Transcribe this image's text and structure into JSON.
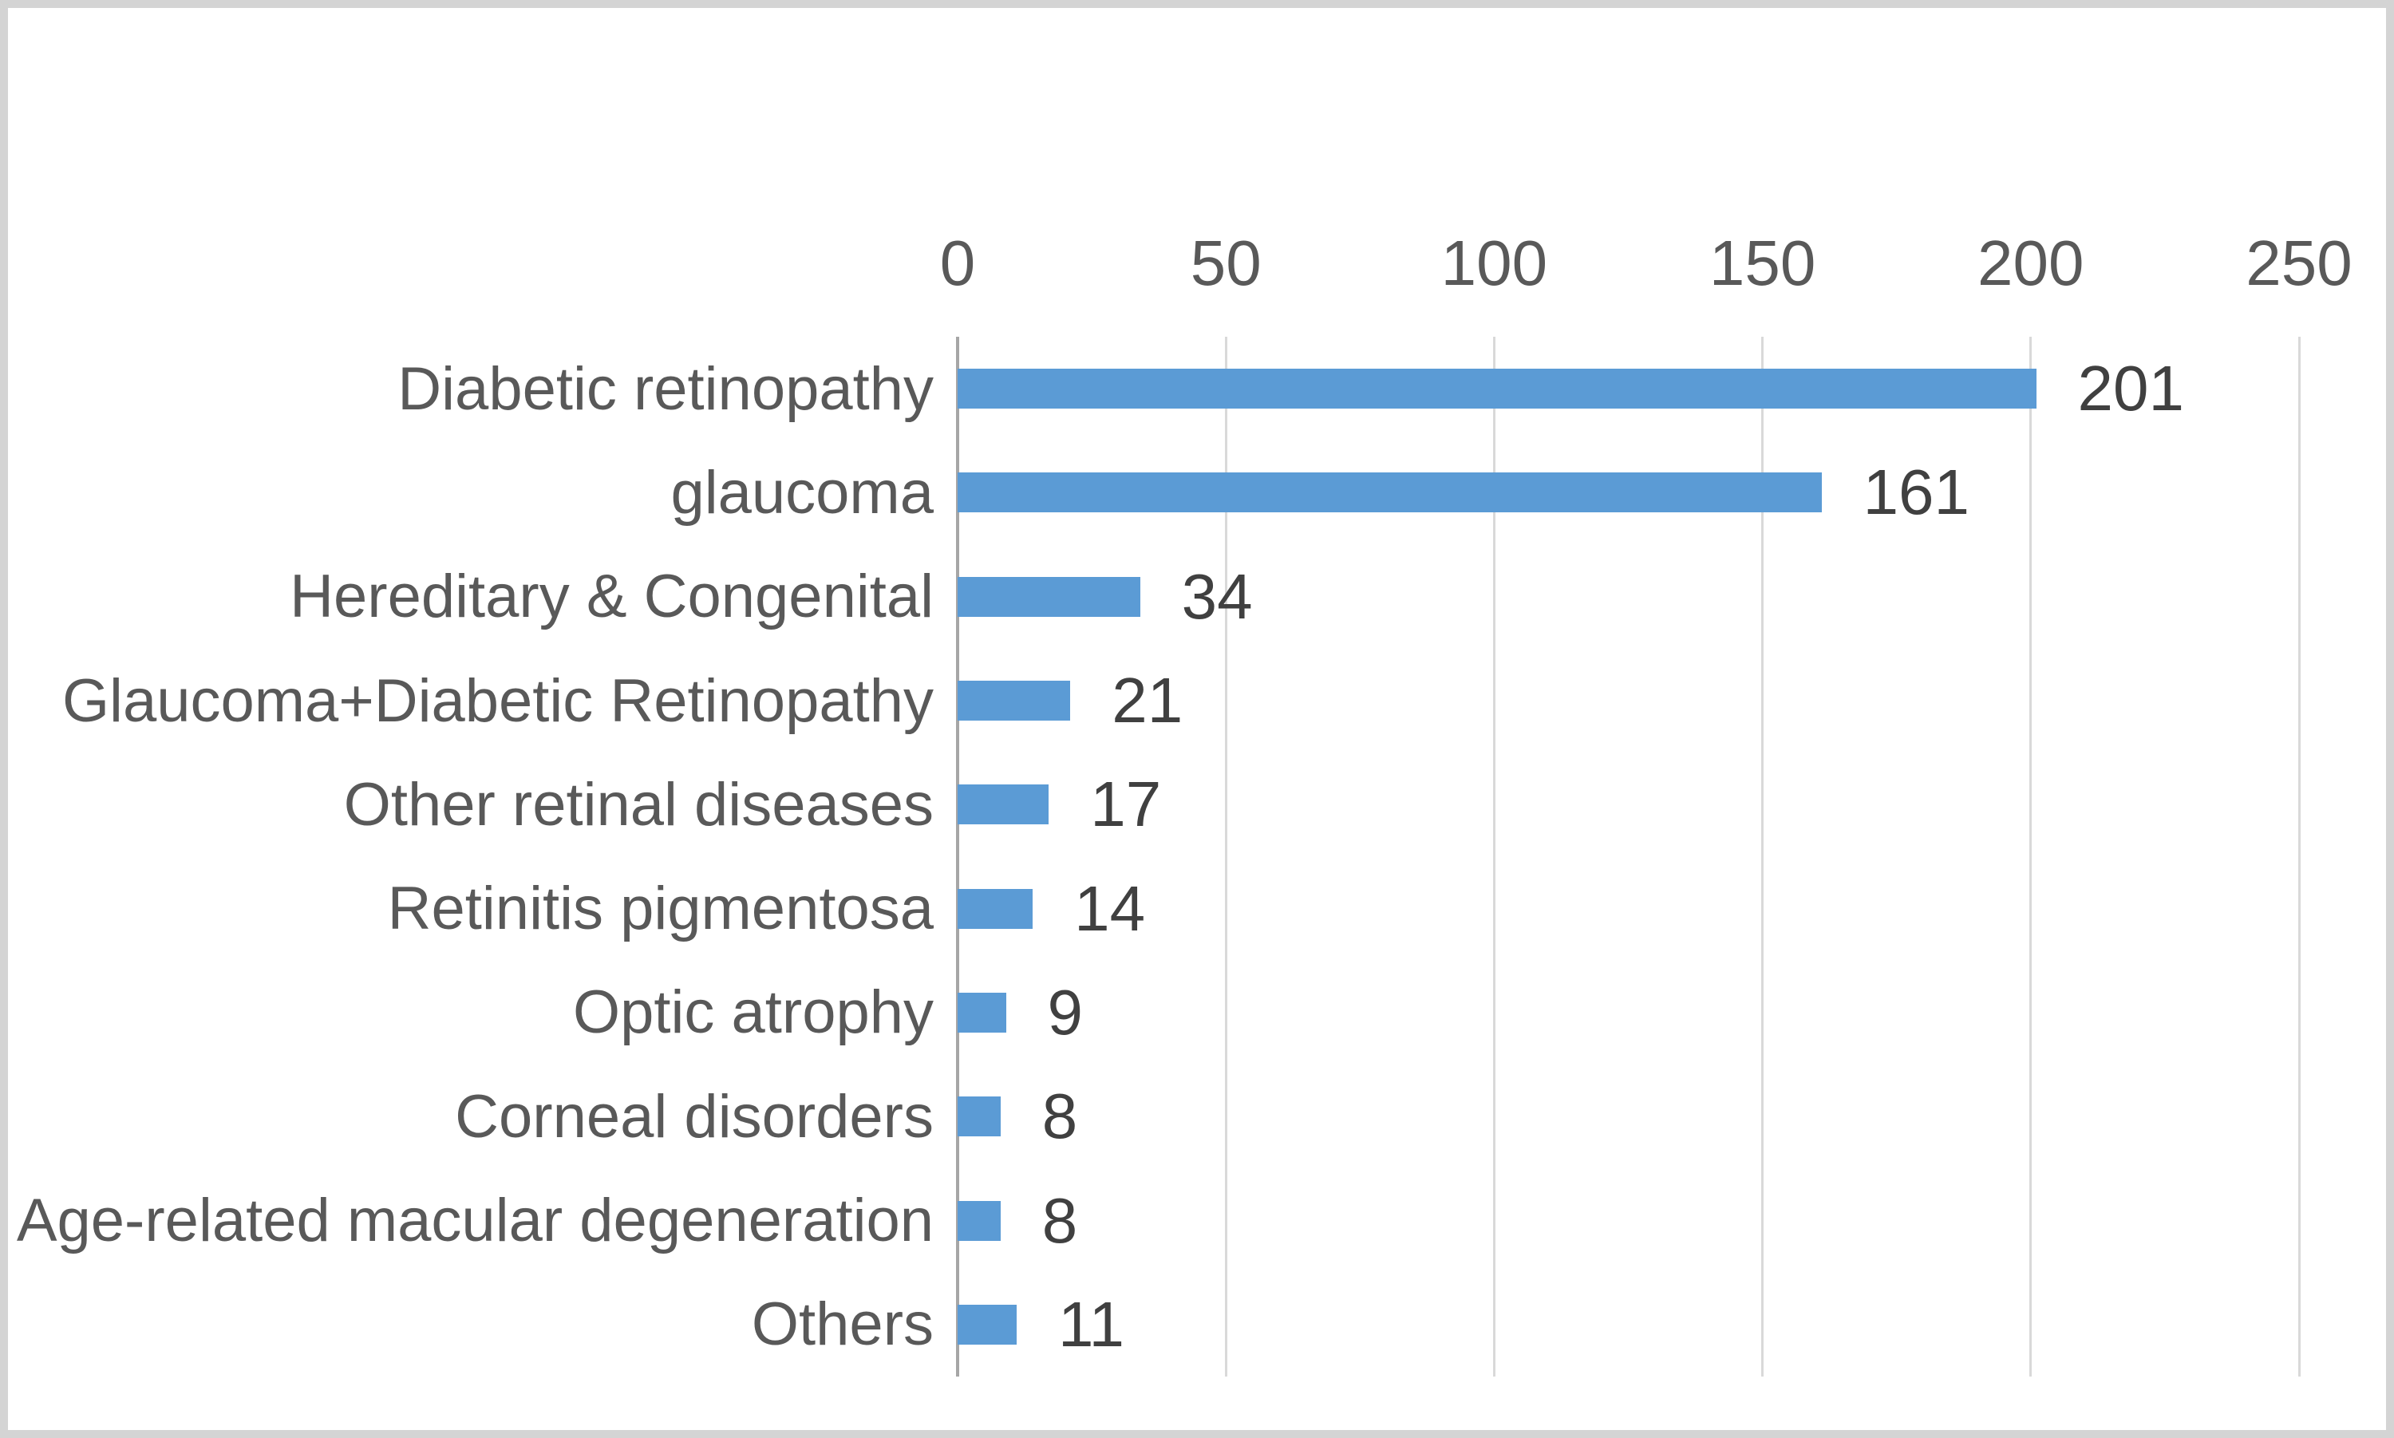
{
  "chart_data": {
    "type": "bar",
    "orientation": "horizontal",
    "title": "",
    "xlabel": "",
    "ylabel": "",
    "categories": [
      "Diabetic retinopathy",
      "glaucoma",
      "Hereditary & Congenital",
      "Glaucoma+Diabetic Retinopathy",
      "Other retinal diseases",
      "Retinitis pigmentosa",
      "Optic atrophy",
      "Corneal disorders",
      "Age-related macular degeneration",
      "Others"
    ],
    "values": [
      201,
      161,
      34,
      21,
      17,
      14,
      9,
      8,
      8,
      11
    ],
    "data_labels": [
      "201",
      "161",
      "34",
      "21",
      "17",
      "14",
      "9",
      "8",
      "8",
      "11"
    ],
    "xlim": [
      0,
      250
    ],
    "x_ticks": [
      "0",
      "50",
      "100",
      "150",
      "200",
      "250"
    ],
    "x_tick_values": [
      0,
      50,
      100,
      150,
      200,
      250
    ],
    "tick_position": "top",
    "grid": true,
    "legend": false,
    "colors": {
      "bar": "#5B9BD5",
      "gridline": "#d9d9d9",
      "axis_line": "#a6a6a6",
      "tick_label": "#595959",
      "category_label": "#595959",
      "data_label": "#404040",
      "frame_border": "#d4d4d4",
      "background": "#ffffff"
    }
  }
}
